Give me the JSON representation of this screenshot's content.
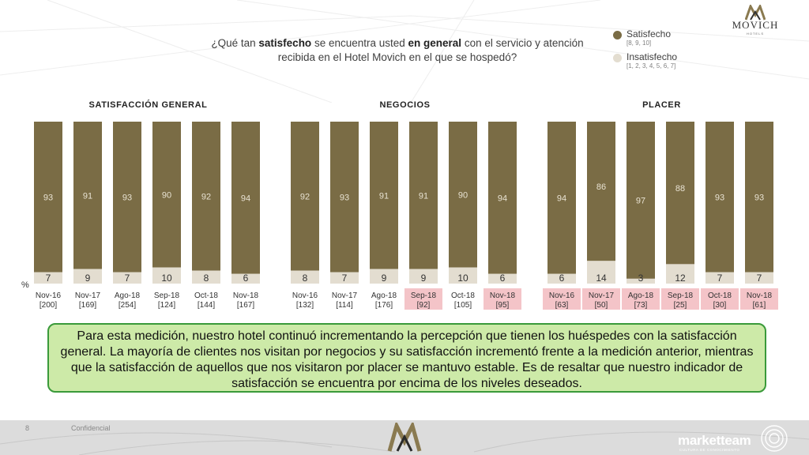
{
  "logo": {
    "brand": "MOVICH",
    "sub": "HOTELS"
  },
  "question": {
    "p1": "¿Qué tan ",
    "b1": "satisfecho",
    "p2": " se encuentra usted ",
    "b2": "en general",
    "p3": " con el servicio y atención recibida en el Hotel Movich en el que se hospedó?"
  },
  "legend": [
    {
      "label": "Satisfecho",
      "sub": "[8, 9, 10]",
      "color": "#7a6c45"
    },
    {
      "label": "Insatisfecho",
      "sub": "[1, 2, 3, 4, 5, 6, 7]",
      "color": "#e3ddd0"
    }
  ],
  "percent_sign": "%",
  "colors": {
    "satisfied": "#7a6c45",
    "dissatisfied": "#e3ddd0",
    "highlight": "#f4c4c8",
    "note_bg": "#cdeaa8",
    "note_border": "#3a9a3a"
  },
  "chart_data": [
    {
      "type": "bar",
      "title": "SATISFACCIÓN GENERAL",
      "categories": [
        "Nov-16",
        "Nov-17",
        "Ago-18",
        "Sep-18",
        "Oct-18",
        "Nov-18"
      ],
      "bases": [
        "[200]",
        "[169]",
        "[254]",
        "[124]",
        "[144]",
        "[167]"
      ],
      "highlighted": [
        false,
        false,
        false,
        false,
        false,
        false
      ],
      "series": [
        {
          "name": "Satisfecho",
          "values": [
            93,
            91,
            93,
            90,
            92,
            94
          ]
        },
        {
          "name": "Insatisfecho",
          "values": [
            7,
            9,
            7,
            10,
            8,
            6
          ]
        }
      ],
      "stacked": true,
      "ylim": [
        0,
        100
      ]
    },
    {
      "type": "bar",
      "title": "NEGOCIOS",
      "categories": [
        "Nov-16",
        "Nov-17",
        "Ago-18",
        "Sep-18",
        "Oct-18",
        "Nov-18"
      ],
      "bases": [
        "[132]",
        "[114]",
        "[176]",
        "[92]",
        "[105]",
        "[95]"
      ],
      "highlighted": [
        false,
        false,
        false,
        true,
        false,
        true
      ],
      "series": [
        {
          "name": "Satisfecho",
          "values": [
            92,
            93,
            91,
            91,
            90,
            94
          ]
        },
        {
          "name": "Insatisfecho",
          "values": [
            8,
            7,
            9,
            9,
            10,
            6
          ]
        }
      ],
      "stacked": true,
      "ylim": [
        0,
        100
      ]
    },
    {
      "type": "bar",
      "title": "PLACER",
      "categories": [
        "Nov-16",
        "Nov-17",
        "Ago-18",
        "Sep-18",
        "Oct-18",
        "Nov-18"
      ],
      "bases": [
        "[63]",
        "[50]",
        "[73]",
        "[25]",
        "[30]",
        "[61]"
      ],
      "highlighted": [
        true,
        true,
        true,
        true,
        true,
        true
      ],
      "series": [
        {
          "name": "Satisfecho",
          "values": [
            94,
            86,
            97,
            88,
            93,
            93
          ]
        },
        {
          "name": "Insatisfecho",
          "values": [
            6,
            14,
            3,
            12,
            7,
            7
          ]
        }
      ],
      "stacked": true,
      "ylim": [
        0,
        100
      ]
    }
  ],
  "note": "Para esta medición, nuestro hotel continuó incrementando la percepción que tienen los huéspedes con la satisfacción general. La mayoría de clientes nos visitan por negocios y su satisfacción incrementó frente a la medición anterior, mientras que la satisfacción de aquellos que nos visitaron por placer se mantuvo estable. Es de resaltar que nuestro indicador de satisfacción se encuentra por encima de los niveles deseados.",
  "footer": {
    "page": "8",
    "confidential": "Confidencial",
    "brand": "marketteam",
    "tagline": "CULTURA DE CONOCIMIENTO"
  }
}
